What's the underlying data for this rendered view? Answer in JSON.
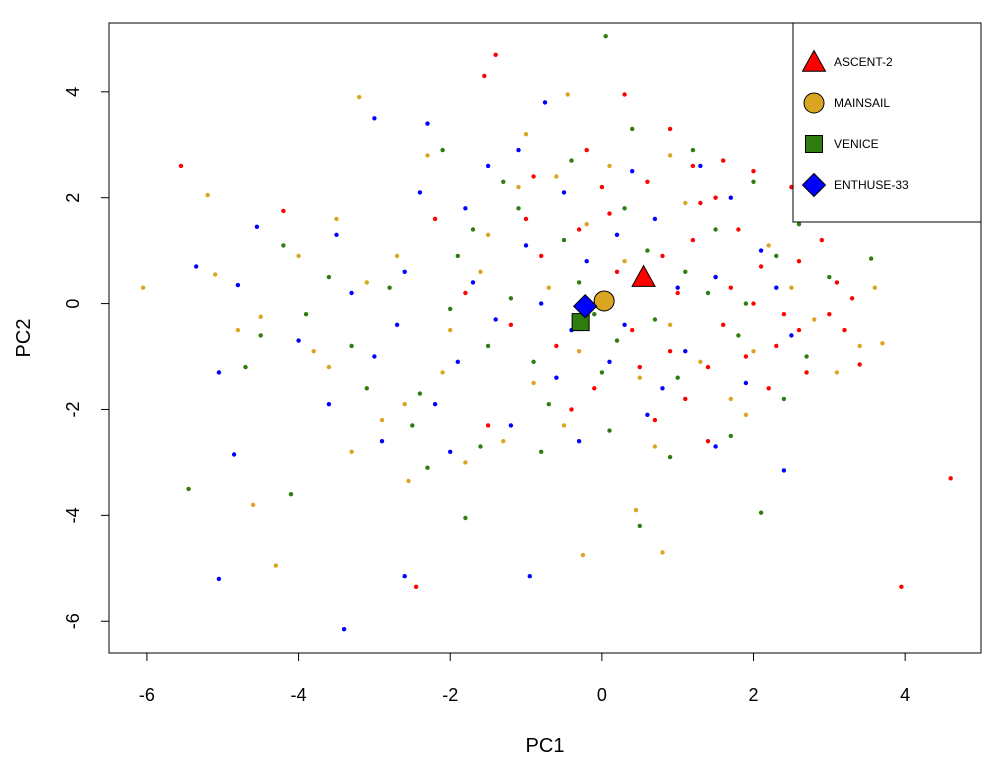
{
  "chart_data": {
    "type": "scatter",
    "title": "",
    "xlabel": "PC1",
    "ylabel": "PC2",
    "xlim": [
      -6.5,
      5.0
    ],
    "ylim": [
      -6.6,
      5.3
    ],
    "x_ticks": [
      -6,
      -4,
      -2,
      0,
      2,
      4
    ],
    "y_ticks": [
      -6,
      -4,
      -2,
      0,
      2,
      4
    ],
    "grid": false,
    "legend_position": "top-right",
    "colors": {
      "ASCENT-2": "#ff0000",
      "MAINSAIL": "#daa520",
      "VENICE": "#2e7d0e",
      "ENTHUSE-33": "#0000ff"
    },
    "series": [
      {
        "name": "ASCENT-2",
        "color": "#ff0000",
        "marker": "triangle",
        "centroid": [
          0.55,
          0.5
        ],
        "points": [
          [
            -5.55,
            2.6
          ],
          [
            -1.4,
            4.7
          ],
          [
            -1.55,
            4.3
          ],
          [
            -4.2,
            1.75
          ],
          [
            4.6,
            -3.3
          ],
          [
            3.95,
            -5.35
          ],
          [
            -2.45,
            -5.35
          ],
          [
            3.2,
            -0.5
          ],
          [
            3.4,
            -1.15
          ],
          [
            3.1,
            0.4
          ],
          [
            2.9,
            1.2
          ],
          [
            2.0,
            2.5
          ],
          [
            0.9,
            3.3
          ],
          [
            0.3,
            3.95
          ],
          [
            1.5,
            2.0
          ],
          [
            1.2,
            1.2
          ],
          [
            0.8,
            0.9
          ],
          [
            1.7,
            0.3
          ],
          [
            2.4,
            -0.2
          ],
          [
            2.6,
            0.8
          ],
          [
            1.9,
            -1.0
          ],
          [
            1.1,
            -1.8
          ],
          [
            0.5,
            -1.2
          ],
          [
            0.2,
            0.6
          ],
          [
            -0.3,
            1.4
          ],
          [
            -0.8,
            0.9
          ],
          [
            -1.2,
            -0.4
          ],
          [
            -1.8,
            0.2
          ],
          [
            -2.2,
            1.6
          ],
          [
            -0.9,
            2.4
          ],
          [
            -0.2,
            2.9
          ],
          [
            0.6,
            2.3
          ],
          [
            1.6,
            -0.4
          ],
          [
            2.2,
            -1.6
          ],
          [
            1.4,
            -2.6
          ],
          [
            0.7,
            -2.2
          ],
          [
            -0.4,
            -2.0
          ],
          [
            -1.5,
            -2.3
          ],
          [
            2.8,
            1.6
          ],
          [
            2.5,
            2.2
          ],
          [
            1.0,
            0.2
          ],
          [
            0.4,
            -0.5
          ],
          [
            1.3,
            1.9
          ],
          [
            2.1,
            0.7
          ],
          [
            0.1,
            1.7
          ],
          [
            -0.6,
            -0.8
          ],
          [
            1.8,
            1.4
          ],
          [
            2.3,
            -0.8
          ],
          [
            3.0,
            -0.2
          ],
          [
            1.6,
            2.7
          ],
          [
            0.0,
            2.2
          ],
          [
            2.7,
            -1.3
          ],
          [
            1.4,
            -1.2
          ],
          [
            2.0,
            0.0
          ],
          [
            -1.0,
            1.6
          ],
          [
            0.9,
            -0.9
          ],
          [
            3.3,
            0.1
          ],
          [
            1.2,
            2.6
          ],
          [
            -0.1,
            -1.6
          ],
          [
            2.6,
            -0.5
          ]
        ]
      },
      {
        "name": "MAINSAIL",
        "color": "#daa520",
        "marker": "circle",
        "centroid": [
          0.03,
          0.05
        ],
        "points": [
          [
            -6.05,
            0.3
          ],
          [
            -5.2,
            2.05
          ],
          [
            -4.6,
            -3.8
          ],
          [
            -4.3,
            -4.95
          ],
          [
            -3.2,
            3.9
          ],
          [
            -0.45,
            3.95
          ],
          [
            -2.55,
            -3.35
          ],
          [
            -0.25,
            -4.75
          ],
          [
            0.8,
            -4.7
          ],
          [
            0.45,
            -3.9
          ],
          [
            3.7,
            -0.75
          ],
          [
            3.6,
            0.3
          ],
          [
            -5.1,
            0.55
          ],
          [
            -4.5,
            -0.25
          ],
          [
            -3.6,
            -1.2
          ],
          [
            -3.1,
            0.4
          ],
          [
            -2.6,
            -1.9
          ],
          [
            -2.0,
            -0.5
          ],
          [
            -1.5,
            1.3
          ],
          [
            -1.1,
            2.2
          ],
          [
            -0.7,
            0.3
          ],
          [
            -0.3,
            -0.9
          ],
          [
            0.3,
            0.8
          ],
          [
            0.9,
            -0.4
          ],
          [
            1.5,
            0.5
          ],
          [
            2.2,
            1.1
          ],
          [
            2.8,
            -0.3
          ],
          [
            3.1,
            -1.3
          ],
          [
            1.9,
            -2.1
          ],
          [
            0.7,
            -2.7
          ],
          [
            -0.5,
            -2.3
          ],
          [
            -1.8,
            -3.0
          ],
          [
            -2.9,
            -2.2
          ],
          [
            -3.5,
            1.6
          ],
          [
            -2.3,
            2.8
          ],
          [
            -1.0,
            3.2
          ],
          [
            0.1,
            2.6
          ],
          [
            1.1,
            1.9
          ],
          [
            2.0,
            -0.9
          ],
          [
            -0.9,
            -1.5
          ],
          [
            -1.6,
            0.6
          ],
          [
            -2.7,
            0.9
          ],
          [
            0.5,
            -1.4
          ],
          [
            1.3,
            -1.1
          ],
          [
            2.5,
            0.3
          ],
          [
            -0.2,
            1.5
          ],
          [
            -3.8,
            -0.9
          ],
          [
            -4.0,
            0.9
          ],
          [
            3.4,
            -0.8
          ],
          [
            -1.3,
            -2.6
          ],
          [
            -2.1,
            -1.3
          ],
          [
            0.9,
            2.8
          ],
          [
            1.7,
            -1.8
          ],
          [
            -0.6,
            2.4
          ],
          [
            -4.8,
            -0.5
          ],
          [
            -3.3,
            -2.8
          ]
        ]
      },
      {
        "name": "VENICE",
        "color": "#2e7d0e",
        "marker": "square",
        "centroid": [
          -0.28,
          -0.35
        ],
        "points": [
          [
            0.05,
            5.05
          ],
          [
            -5.45,
            -3.5
          ],
          [
            -4.1,
            -3.6
          ],
          [
            -1.8,
            -4.05
          ],
          [
            0.5,
            -4.2
          ],
          [
            2.1,
            -3.95
          ],
          [
            3.55,
            0.85
          ],
          [
            -4.7,
            -1.2
          ],
          [
            -4.2,
            1.1
          ],
          [
            -3.9,
            -0.2
          ],
          [
            -3.3,
            -0.8
          ],
          [
            -2.8,
            0.3
          ],
          [
            -2.4,
            -1.7
          ],
          [
            -1.9,
            0.9
          ],
          [
            -1.5,
            -0.8
          ],
          [
            -1.1,
            1.8
          ],
          [
            -0.7,
            -1.9
          ],
          [
            -0.3,
            0.4
          ],
          [
            0.2,
            -0.7
          ],
          [
            0.6,
            1.0
          ],
          [
            1.0,
            -1.4
          ],
          [
            1.4,
            0.2
          ],
          [
            1.8,
            -0.6
          ],
          [
            2.3,
            0.9
          ],
          [
            2.7,
            -1.0
          ],
          [
            3.0,
            0.5
          ],
          [
            2.0,
            2.3
          ],
          [
            1.2,
            2.9
          ],
          [
            0.4,
            3.3
          ],
          [
            -0.4,
            2.7
          ],
          [
            -1.3,
            2.3
          ],
          [
            -2.1,
            2.9
          ],
          [
            -0.8,
            -2.8
          ],
          [
            0.1,
            -2.4
          ],
          [
            0.9,
            -2.9
          ],
          [
            1.7,
            -2.5
          ],
          [
            -1.6,
            -2.7
          ],
          [
            -2.5,
            -2.3
          ],
          [
            -3.1,
            -1.6
          ],
          [
            -0.1,
            -0.2
          ],
          [
            0.7,
            -0.3
          ],
          [
            -0.5,
            1.2
          ],
          [
            1.5,
            1.4
          ],
          [
            -1.2,
            0.1
          ],
          [
            2.4,
            -1.8
          ],
          [
            -2.0,
            -0.1
          ],
          [
            1.1,
            0.6
          ],
          [
            -3.6,
            0.5
          ],
          [
            0.3,
            1.8
          ],
          [
            -0.9,
            -1.1
          ],
          [
            1.9,
            0.0
          ],
          [
            2.6,
            1.5
          ],
          [
            -1.7,
            1.4
          ],
          [
            0.0,
            -1.3
          ],
          [
            -4.5,
            -0.6
          ],
          [
            -2.3,
            -3.1
          ]
        ]
      },
      {
        "name": "ENTHUSE-33",
        "color": "#0000ff",
        "marker": "diamond",
        "centroid": [
          -0.22,
          -0.05
        ],
        "points": [
          [
            -3.4,
            -6.15
          ],
          [
            -5.05,
            -5.2
          ],
          [
            -0.95,
            -5.15
          ],
          [
            -2.6,
            -5.15
          ],
          [
            -4.85,
            -2.85
          ],
          [
            -5.35,
            0.7
          ],
          [
            -5.05,
            -1.3
          ],
          [
            -4.8,
            0.35
          ],
          [
            -4.55,
            1.45
          ],
          [
            -3.0,
            3.5
          ],
          [
            -2.3,
            3.4
          ],
          [
            -0.75,
            3.8
          ],
          [
            2.4,
            -3.15
          ],
          [
            -4.0,
            -0.7
          ],
          [
            -3.5,
            1.3
          ],
          [
            -3.0,
            -1.0
          ],
          [
            -2.6,
            0.6
          ],
          [
            -2.2,
            -1.9
          ],
          [
            -1.8,
            1.8
          ],
          [
            -1.4,
            -0.3
          ],
          [
            -1.0,
            1.1
          ],
          [
            -0.6,
            -1.4
          ],
          [
            -0.2,
            0.8
          ],
          [
            0.3,
            -0.4
          ],
          [
            0.7,
            1.6
          ],
          [
            1.1,
            -0.9
          ],
          [
            1.5,
            0.5
          ],
          [
            1.9,
            -1.5
          ],
          [
            2.3,
            0.3
          ],
          [
            2.7,
            1.8
          ],
          [
            1.3,
            2.6
          ],
          [
            0.4,
            2.5
          ],
          [
            -0.5,
            2.1
          ],
          [
            -1.5,
            2.6
          ],
          [
            -2.4,
            2.1
          ],
          [
            -1.2,
            -2.3
          ],
          [
            -0.3,
            -2.6
          ],
          [
            0.6,
            -2.1
          ],
          [
            1.5,
            -2.7
          ],
          [
            -2.0,
            -2.8
          ],
          [
            -2.9,
            -2.6
          ],
          [
            -3.6,
            -1.9
          ],
          [
            -0.8,
            0.0
          ],
          [
            0.1,
            -1.1
          ],
          [
            1.0,
            0.3
          ],
          [
            -1.7,
            0.4
          ],
          [
            2.1,
            1.0
          ],
          [
            -0.4,
            -0.5
          ],
          [
            0.8,
            -1.6
          ],
          [
            -2.7,
            -0.4
          ],
          [
            1.7,
            2.0
          ],
          [
            -1.1,
            2.9
          ],
          [
            0.2,
            1.3
          ],
          [
            -3.3,
            0.2
          ],
          [
            2.5,
            -0.6
          ],
          [
            -1.9,
            -1.1
          ]
        ]
      }
    ]
  }
}
